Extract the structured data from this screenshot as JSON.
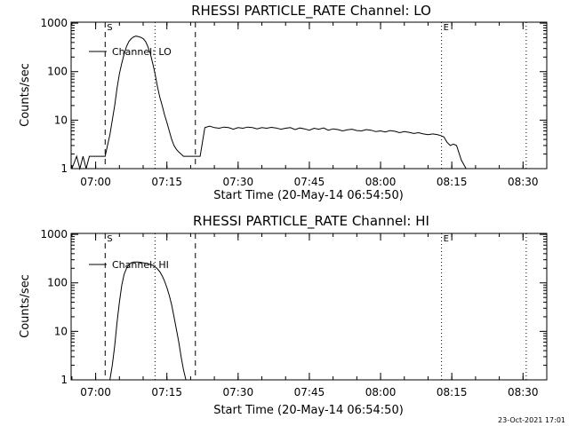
{
  "datestamp": "23-Oct-2021 17:01",
  "chart_data": [
    {
      "type": "line",
      "title": "RHESSI PARTICLE_RATE Channel: LO",
      "xlabel": "Start Time (20-May-14 06:54:50)",
      "ylabel": "Counts/sec",
      "yscale": "log",
      "ylim": [
        1,
        1000
      ],
      "xlim": [
        "06:54:50",
        "08:35:00"
      ],
      "x_ticks": [
        "07:00",
        "07:15",
        "07:30",
        "07:45",
        "08:00",
        "08:15",
        "08:30"
      ],
      "y_ticks": [
        "1",
        "10",
        "100",
        "1000"
      ],
      "legend": "top-left",
      "markers": [
        {
          "label": "S",
          "time": "07:02:00",
          "style": "dashed"
        },
        {
          "label": "",
          "time": "07:12:30",
          "style": "dotted"
        },
        {
          "label": "",
          "time": "07:21:00",
          "style": "dashed"
        },
        {
          "label": "E",
          "time": "08:12:50",
          "style": "dotted"
        },
        {
          "label": "",
          "time": "08:30:40",
          "style": "dotted"
        }
      ],
      "series": [
        {
          "name": "Channel: LO",
          "x": [
            "06:55:00",
            "06:56:00",
            "06:56:40",
            "06:57:20",
            "06:58:00",
            "06:58:40",
            "06:59:20",
            "07:00:00",
            "07:00:40",
            "07:01:20",
            "07:02:00",
            "07:02:30",
            "07:03:00",
            "07:03:30",
            "07:04:00",
            "07:04:30",
            "07:05:00",
            "07:05:30",
            "07:06:00",
            "07:06:30",
            "07:07:00",
            "07:07:30",
            "07:08:00",
            "07:08:30",
            "07:09:00",
            "07:09:30",
            "07:10:00",
            "07:10:30",
            "07:11:00",
            "07:11:30",
            "07:12:00",
            "07:12:30",
            "07:13:00",
            "07:13:30",
            "07:14:00",
            "07:14:30",
            "07:15:00",
            "07:15:30",
            "07:16:00",
            "07:16:30",
            "07:17:00",
            "07:17:30",
            "07:18:00",
            "07:18:30",
            "07:19:00",
            "07:19:30",
            "07:20:00",
            "07:20:30",
            "07:21:00",
            "07:22:00",
            "07:23:00",
            "07:24:00",
            "07:25:00",
            "07:26:00",
            "07:27:00",
            "07:28:00",
            "07:29:00",
            "07:30:00",
            "07:31:00",
            "07:32:00",
            "07:33:00",
            "07:34:00",
            "07:35:00",
            "07:36:00",
            "07:37:00",
            "07:38:00",
            "07:39:00",
            "07:40:00",
            "07:41:00",
            "07:42:00",
            "07:43:00",
            "07:44:00",
            "07:45:00",
            "07:46:00",
            "07:47:00",
            "07:48:00",
            "07:49:00",
            "07:50:00",
            "07:51:00",
            "07:52:00",
            "07:53:00",
            "07:54:00",
            "07:55:00",
            "07:56:00",
            "07:57:00",
            "07:58:00",
            "07:59:00",
            "08:00:00",
            "08:01:00",
            "08:02:00",
            "08:03:00",
            "08:04:00",
            "08:05:00",
            "08:06:00",
            "08:07:00",
            "08:08:00",
            "08:09:00",
            "08:10:00",
            "08:11:00",
            "08:12:00",
            "08:12:40",
            "08:13:20",
            "08:14:00",
            "08:14:40",
            "08:15:20",
            "08:16:00",
            "08:17:00",
            "08:18:00",
            "08:19:00",
            "08:20:00",
            "08:21:00",
            "08:22:00",
            "08:23:00",
            "08:24:00",
            "08:25:00",
            "08:26:00",
            "08:27:00",
            "08:28:00"
          ],
          "y": [
            1,
            1.8,
            1,
            1.8,
            1,
            1.8,
            1.8,
            1.8,
            1.8,
            1.8,
            1.8,
            3,
            5,
            10,
            20,
            45,
            90,
            150,
            230,
            330,
            420,
            480,
            520,
            540,
            530,
            510,
            480,
            420,
            330,
            240,
            150,
            90,
            50,
            30,
            20,
            13,
            9,
            6,
            4,
            3,
            2.5,
            2.2,
            2,
            1.8,
            1.8,
            1.8,
            1.8,
            1.8,
            1.8,
            1.8,
            7,
            7.5,
            7,
            6.8,
            7.2,
            7,
            6.5,
            7,
            6.8,
            7.2,
            7,
            6.6,
            7,
            6.8,
            7.1,
            6.9,
            6.5,
            6.8,
            7,
            6.4,
            6.9,
            6.6,
            6.2,
            6.8,
            6.5,
            6.9,
            6.2,
            6.6,
            6.4,
            6,
            6.3,
            6.5,
            6.1,
            6,
            6.4,
            6.2,
            5.8,
            6,
            5.7,
            6.1,
            5.9,
            5.5,
            5.8,
            5.6,
            5.3,
            5.5,
            5.2,
            5,
            5.2,
            5,
            4.8,
            4.5,
            3.5,
            3,
            3.2,
            3,
            1.5,
            1,
            1,
            1,
            1,
            1,
            1,
            1,
            1,
            1,
            1,
            1
          ]
        }
      ]
    },
    {
      "type": "line",
      "title": "RHESSI PARTICLE_RATE Channel: HI",
      "xlabel": "Start Time (20-May-14 06:54:50)",
      "ylabel": "Counts/sec",
      "yscale": "log",
      "ylim": [
        1,
        1000
      ],
      "xlim": [
        "06:54:50",
        "08:35:00"
      ],
      "x_ticks": [
        "07:00",
        "07:15",
        "07:30",
        "07:45",
        "08:00",
        "08:15",
        "08:30"
      ],
      "y_ticks": [
        "1",
        "10",
        "100",
        "1000"
      ],
      "legend": "top-left",
      "markers": [
        {
          "label": "S",
          "time": "07:02:00",
          "style": "dashed"
        },
        {
          "label": "",
          "time": "07:12:30",
          "style": "dotted"
        },
        {
          "label": "",
          "time": "07:21:00",
          "style": "dashed"
        },
        {
          "label": "E",
          "time": "08:12:50",
          "style": "dotted"
        },
        {
          "label": "",
          "time": "08:30:40",
          "style": "dotted"
        }
      ],
      "series": [
        {
          "name": "Channel: HI",
          "x": [
            "07:03:00",
            "07:03:30",
            "07:04:00",
            "07:04:30",
            "07:05:00",
            "07:05:30",
            "07:06:00",
            "07:06:30",
            "07:07:00",
            "07:07:30",
            "07:08:00",
            "07:08:30",
            "07:09:00",
            "07:09:30",
            "07:10:00",
            "07:10:30",
            "07:11:00",
            "07:11:30",
            "07:12:00",
            "07:12:30",
            "07:13:00",
            "07:13:30",
            "07:14:00",
            "07:14:30",
            "07:15:00",
            "07:15:30",
            "07:16:00",
            "07:16:30",
            "07:17:00",
            "07:17:30",
            "07:18:00",
            "07:18:30",
            "07:19:00"
          ],
          "y": [
            1,
            2,
            5,
            15,
            40,
            90,
            150,
            200,
            240,
            260,
            270,
            270,
            270,
            265,
            260,
            255,
            250,
            240,
            230,
            215,
            195,
            170,
            140,
            110,
            80,
            55,
            35,
            20,
            11,
            6,
            3,
            1.6,
            1
          ]
        }
      ]
    }
  ]
}
